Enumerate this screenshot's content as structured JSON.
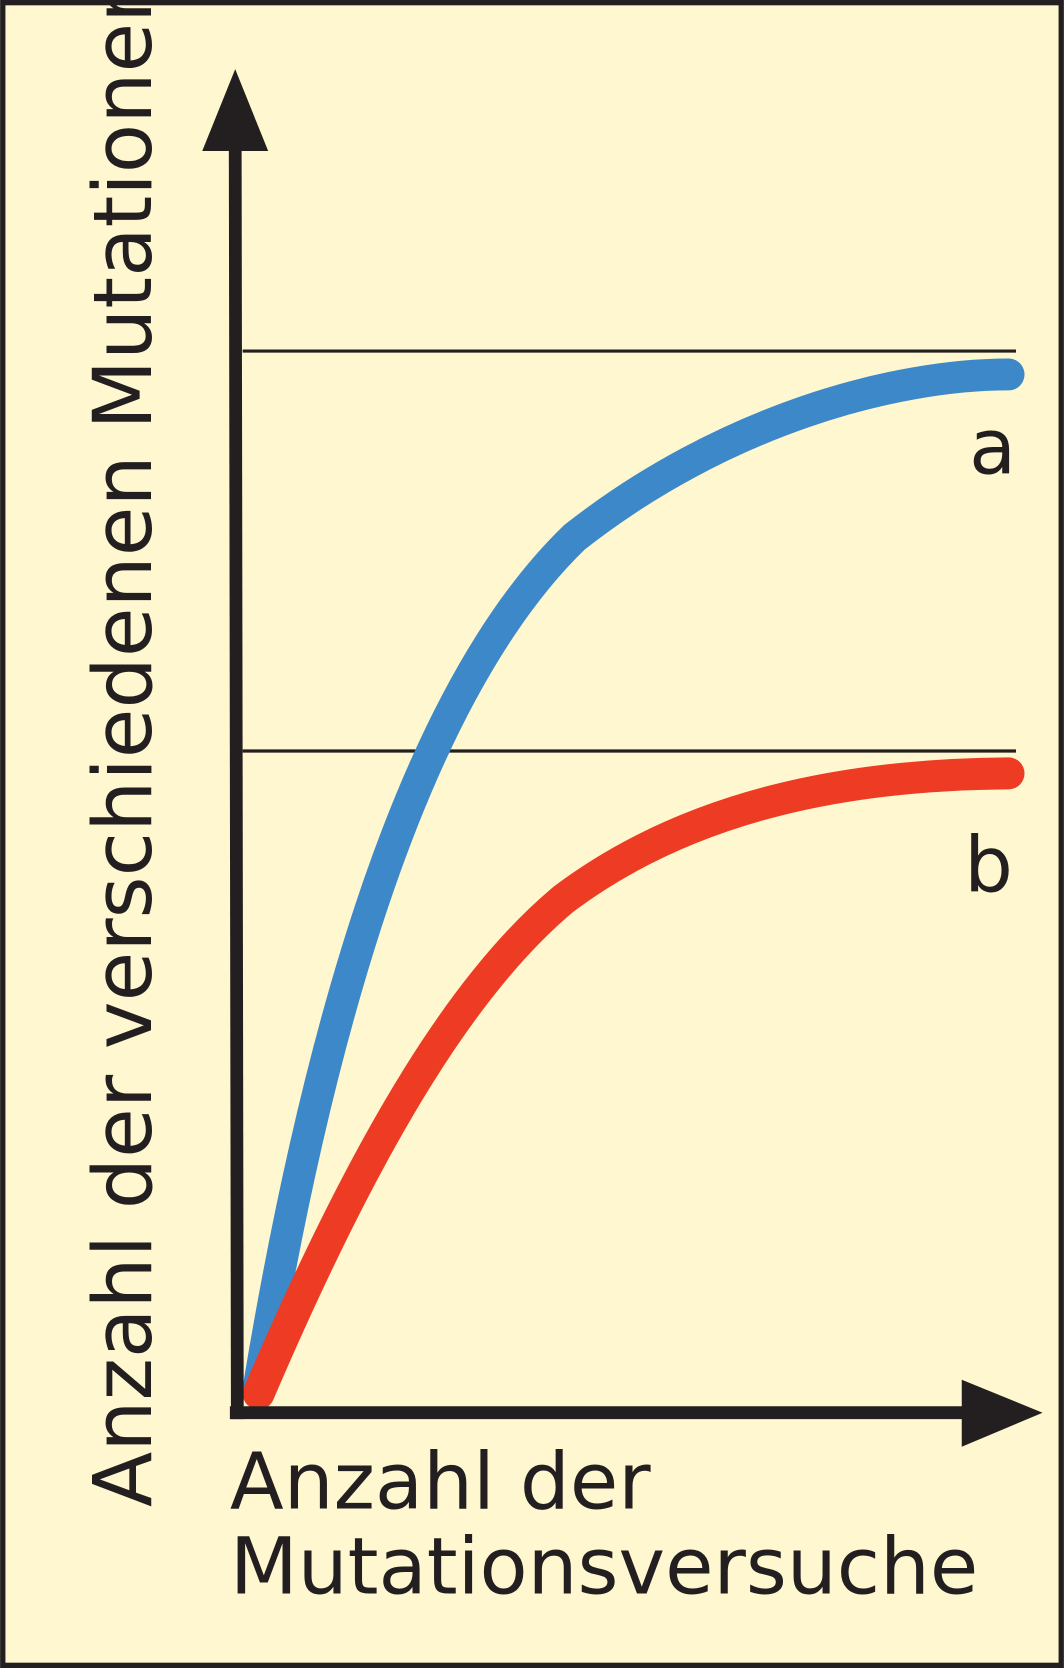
{
  "y_axis_label": "Anzahl der verschiedenen Mutationen",
  "x_axis_label": [
    "Anzahl der",
    "Mutationsversuche"
  ],
  "curves": [
    {
      "label": "a"
    },
    {
      "label": "b"
    }
  ]
}
